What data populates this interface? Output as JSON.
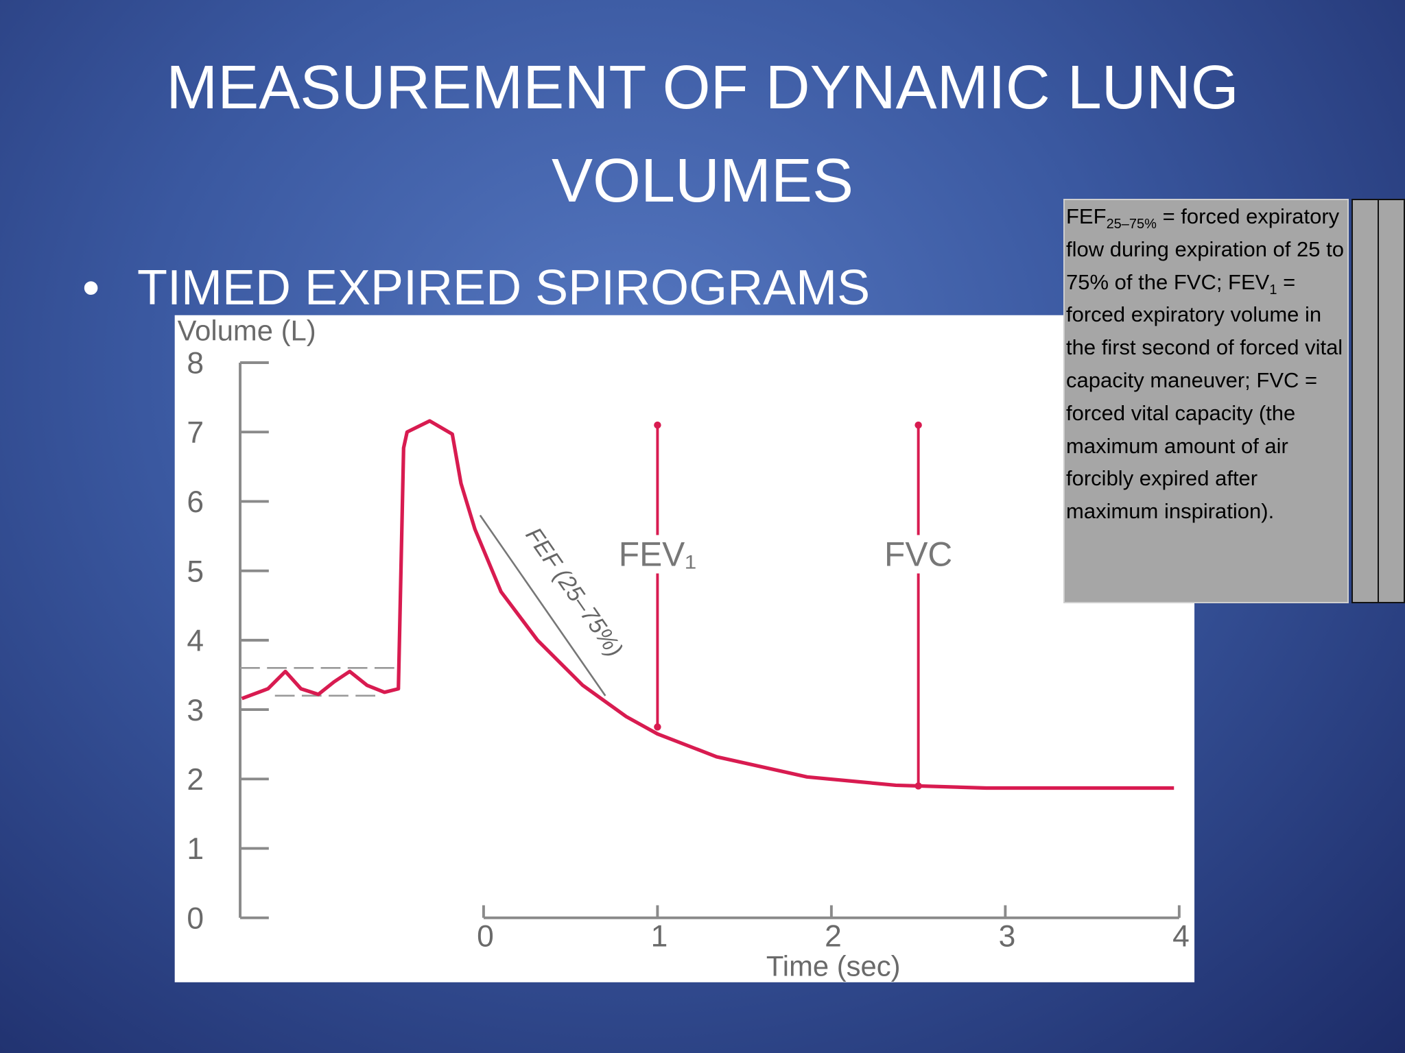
{
  "slide": {
    "title": "MEASUREMENT OF DYNAMIC LUNG VOLUMES",
    "bullet": "TIMED EXPIRED SPIROGRAMS"
  },
  "note": {
    "runs": [
      {
        "text": "FEF"
      },
      {
        "sub": "25–75%"
      },
      {
        "text": " = forced expiratory flow during expiration of 25 to 75% of the FVC; FEV"
      },
      {
        "sub": "1"
      },
      {
        "text": " = forced expiratory volume in the first second of forced vital capacity maneuver; FVC = forced vital capacity (the maximum amount of air forcibly expired after maximum inspiration)."
      }
    ]
  },
  "chart_data": {
    "type": "line",
    "y_label": "Volume (L)",
    "x_label": "Time (sec)",
    "x": [
      -1.39,
      -1.24,
      -1.14,
      -1.05,
      -0.95,
      -0.86,
      -0.77,
      -0.67,
      -0.57,
      -0.49,
      -0.46,
      -0.44,
      -0.31,
      -0.18,
      -0.13,
      -0.05,
      0.1,
      0.31,
      0.57,
      0.82,
      1.0,
      1.34,
      1.86,
      2.37,
      2.89,
      3.4,
      3.97
    ],
    "series": [
      {
        "name": "Volume",
        "color": "#d81b50",
        "values": [
          3.16,
          3.3,
          3.55,
          3.3,
          3.22,
          3.4,
          3.55,
          3.35,
          3.25,
          3.3,
          6.77,
          7.0,
          7.16,
          6.97,
          6.26,
          5.6,
          4.7,
          4.0,
          3.35,
          2.9,
          2.65,
          2.32,
          2.03,
          1.91,
          1.87,
          1.87,
          1.87
        ]
      }
    ],
    "xlim": [
      -1.4,
      4
    ],
    "xticks": [
      0,
      1,
      2,
      3,
      4
    ],
    "ylim": [
      0,
      8
    ],
    "yticks": [
      0,
      1,
      2,
      3,
      4,
      5,
      6,
      7,
      8
    ],
    "annotations": [
      {
        "label": "FEV₁",
        "x": 1,
        "y": [
          2.75,
          7.1
        ]
      },
      {
        "label": "FVC",
        "x": 2.5,
        "y": [
          1.9,
          7.1
        ]
      }
    ],
    "reference_lines": [
      {
        "y": 3.6,
        "x": [
          -1.4,
          -0.5
        ]
      },
      {
        "y": 3.2,
        "x": [
          -1.2,
          -0.6
        ]
      }
    ],
    "fef_line": {
      "label": "FEF (25–75%)",
      "x": [
        -0.02,
        0.7
      ],
      "y": [
        5.8,
        3.2
      ]
    }
  }
}
